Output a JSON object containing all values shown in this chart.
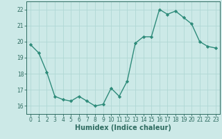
{
  "x": [
    0,
    1,
    2,
    3,
    4,
    5,
    6,
    7,
    8,
    9,
    10,
    11,
    12,
    13,
    14,
    15,
    16,
    17,
    18,
    19,
    20,
    21,
    22,
    23
  ],
  "y": [
    19.8,
    19.3,
    18.1,
    16.6,
    16.4,
    16.3,
    16.6,
    16.3,
    16.0,
    16.1,
    17.1,
    16.6,
    17.55,
    19.9,
    20.3,
    20.3,
    22.0,
    21.7,
    21.9,
    21.5,
    21.1,
    20.0,
    19.7,
    19.6
  ],
  "line_color": "#2e8b7a",
  "marker": "D",
  "marker_size": 2.2,
  "bg_color": "#cce9e7",
  "grid_color": "#b0d8d4",
  "xlabel": "Humidex (Indice chaleur)",
  "ylim": [
    15.5,
    22.5
  ],
  "xlim": [
    -0.5,
    23.5
  ],
  "yticks": [
    16,
    17,
    18,
    19,
    20,
    21,
    22
  ],
  "xticks": [
    0,
    1,
    2,
    3,
    4,
    5,
    6,
    7,
    8,
    9,
    10,
    11,
    12,
    13,
    14,
    15,
    16,
    17,
    18,
    19,
    20,
    21,
    22,
    23
  ],
  "tick_fontsize": 5.5,
  "label_fontsize": 7.0,
  "line_width": 1.0,
  "spine_color": "#2e6b60",
  "tick_color": "#2e6b60"
}
